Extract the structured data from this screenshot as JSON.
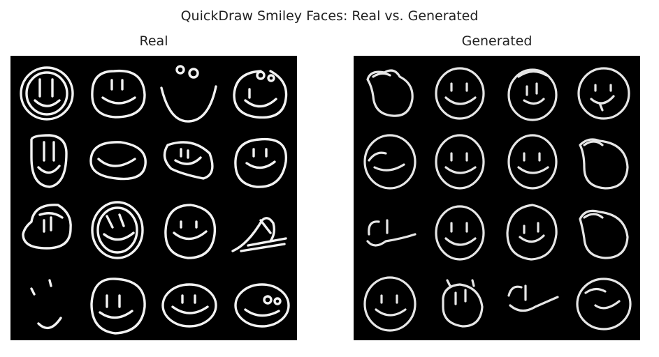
{
  "figure": {
    "title": "QuickDraw Smiley Faces: Real vs. Generated"
  },
  "panels": [
    {
      "title": "Real"
    },
    {
      "title": "Generated"
    }
  ],
  "colors": {
    "background": "#ffffff",
    "image_background": "#000000",
    "stroke": "#f2f2f2"
  }
}
